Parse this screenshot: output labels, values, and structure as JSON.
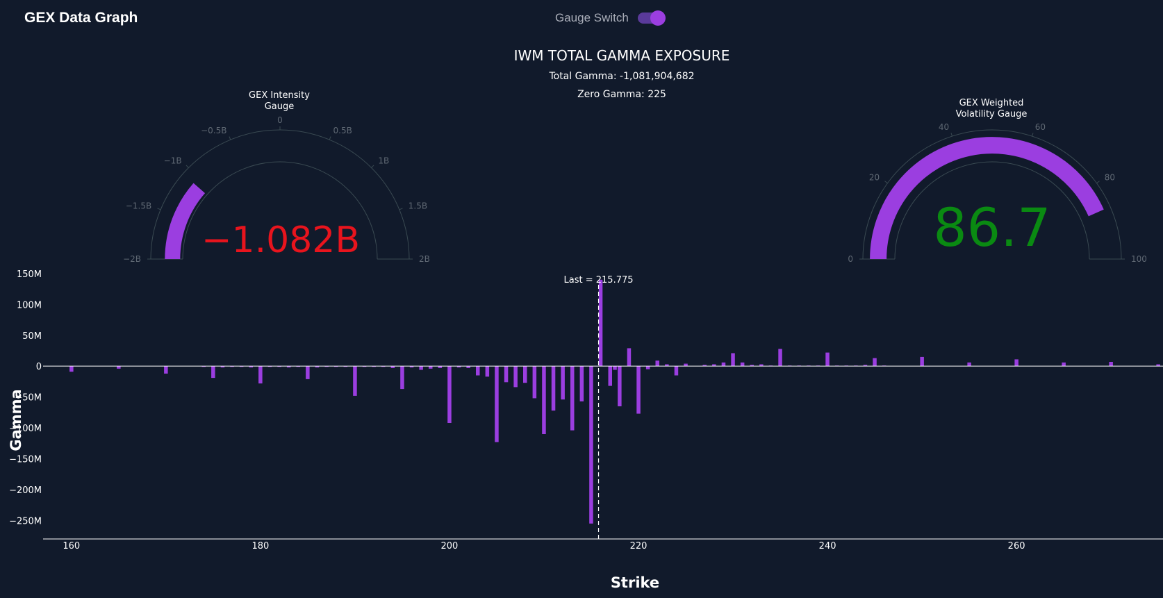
{
  "header": {
    "app_title": "GEX Data Graph",
    "switch_label": "Gauge Switch",
    "switch_on": true
  },
  "colors": {
    "background": "#111a2b",
    "bar": "#9b3ee0",
    "negative_value": "#e8141d",
    "positive_value": "#0a8a12",
    "zero_line": "#ffffff"
  },
  "chart_data": [
    {
      "type": "bar",
      "title": "IWM TOTAL GAMMA EXPOSURE",
      "subtitle_lines": [
        "Total Gamma: -1,081,904,682",
        "Zero Gamma: 225"
      ],
      "xlabel": "Strike",
      "ylabel": "Gamma",
      "xlim": [
        157,
        275.5
      ],
      "ylim": [
        -280000000,
        160000000
      ],
      "x_ticks": [
        160,
        180,
        200,
        220,
        240,
        260
      ],
      "y_ticks": [
        150000000,
        100000000,
        50000000,
        0,
        -50000000,
        -100000000,
        -150000000,
        -200000000,
        -250000000
      ],
      "y_tick_labels": [
        "150M",
        "100M",
        "50M",
        "0",
        "−50M",
        "−100M",
        "−150M",
        "−200M",
        "−250M"
      ],
      "last_price": 215.775,
      "last_annotation": "Last = 215.775",
      "grid": false,
      "x": [
        160,
        161,
        162,
        163,
        164,
        165,
        166,
        167,
        168,
        169,
        170,
        171,
        172,
        173,
        174,
        175,
        176,
        177,
        178,
        179,
        180,
        181,
        182,
        183,
        184,
        185,
        186,
        187,
        188,
        189,
        190,
        191,
        192,
        193,
        194,
        195,
        196,
        197,
        198,
        199,
        200,
        201,
        202,
        203,
        204,
        205,
        206,
        207,
        208,
        209,
        210,
        211,
        212,
        213,
        214,
        215,
        216,
        217,
        217.5,
        218,
        219,
        220,
        221,
        222,
        223,
        224,
        225,
        226,
        227,
        228,
        229,
        230,
        231,
        232,
        233,
        234,
        235,
        236,
        237,
        238,
        239,
        240,
        241,
        242,
        243,
        244,
        245,
        246,
        247,
        248,
        249,
        250,
        251,
        252,
        253,
        254,
        255,
        256,
        257,
        258,
        259,
        260,
        261,
        262,
        263,
        264,
        265,
        266,
        267,
        268,
        269,
        270,
        271,
        272,
        273,
        274,
        275
      ],
      "values": [
        -9000000,
        0,
        0,
        0,
        0,
        -4000000,
        0,
        0,
        0,
        0,
        -12000000,
        0,
        0,
        0,
        -1000000,
        -19000000,
        -2000000,
        -1000000,
        -1000000,
        -2000000,
        -28000000,
        -1000000,
        -1000000,
        -2000000,
        -1000000,
        -21000000,
        -2000000,
        -1000000,
        -1000000,
        -1000000,
        -48000000,
        -1000000,
        -1000000,
        -1000000,
        -3000000,
        -37000000,
        -2000000,
        -6000000,
        -4000000,
        -3000000,
        -92000000,
        -2000000,
        -3000000,
        -15000000,
        -17000000,
        -123000000,
        -26000000,
        -34000000,
        -27000000,
        -52000000,
        -110000000,
        -72000000,
        -54000000,
        -104000000,
        -57000000,
        -255000000,
        140000000,
        -32000000,
        -6000000,
        -65000000,
        29000000,
        -77000000,
        -5000000,
        9000000,
        3000000,
        -15000000,
        4000000,
        0,
        2000000,
        3000000,
        6000000,
        21000000,
        6000000,
        2000000,
        3000000,
        1000000,
        28000000,
        1000000,
        1000000,
        1000000,
        1000000,
        22000000,
        1000000,
        1000000,
        1000000,
        2000000,
        13000000,
        1000000,
        0,
        0,
        0,
        15000000,
        0,
        0,
        0,
        0,
        6000000,
        0,
        0,
        0,
        0,
        11000000,
        0,
        0,
        0,
        0,
        6000000,
        0,
        0,
        0,
        0,
        7000000,
        0,
        0,
        0,
        0,
        3000000
      ]
    },
    {
      "type": "gauge",
      "title": "GEX Intensity Gauge",
      "title_lines": [
        "GEX Intensity",
        "Gauge"
      ],
      "value": -1081904682,
      "value_label": "−1.082B",
      "range": [
        -2000000000,
        2000000000
      ],
      "ticks": [
        -2000000000,
        -1500000000,
        -1000000000,
        -500000000,
        0,
        500000000,
        1000000000,
        1500000000,
        2000000000
      ],
      "tick_labels": [
        "−2B",
        "−1.5B",
        "−1B",
        "−0.5B",
        "0",
        "0.5B",
        "1B",
        "1.5B",
        "2B"
      ]
    },
    {
      "type": "gauge",
      "title": "GEX Weighted Volatility Gauge",
      "title_lines": [
        "GEX Weighted",
        "Volatility Gauge"
      ],
      "value": 86.7,
      "value_label": "86.7",
      "range": [
        0,
        100
      ],
      "ticks": [
        0,
        20,
        40,
        60,
        80,
        100
      ],
      "tick_labels": [
        "0",
        "20",
        "40",
        "60",
        "80",
        "100"
      ]
    }
  ]
}
